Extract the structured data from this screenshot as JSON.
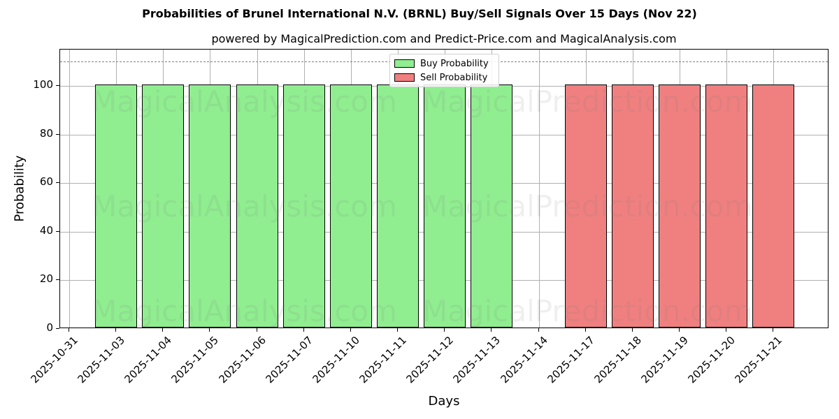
{
  "title": "Probabilities of Brunel International N.V. (BRNL) Buy/Sell Signals Over 15 Days (Nov 22)",
  "subtitle": "powered by MagicalPrediction.com and Predict-Price.com and MagicalAnalysis.com",
  "watermarks": [
    "MagicalAnalysis.com",
    "MagicalPrediction.com"
  ],
  "legend": {
    "buy_label": "Buy Probability",
    "sell_label": "Sell Probability"
  },
  "colors": {
    "buy": "#90ee90",
    "sell": "#f08080"
  },
  "chart_data": {
    "type": "bar",
    "title": "Probabilities of Brunel International N.V. (BRNL) Buy/Sell Signals Over 15 Days (Nov 22)",
    "subtitle": "powered by MagicalPrediction.com and Predict-Price.com and MagicalAnalysis.com",
    "xlabel": "Days",
    "ylabel": "Probability",
    "ylim": [
      0,
      115
    ],
    "yticks": [
      0,
      20,
      40,
      60,
      80,
      100
    ],
    "reference_line": 110,
    "grid": true,
    "legend_position": "upper center",
    "categories": [
      "2025-10-31",
      "2025-11-03",
      "2025-11-04",
      "2025-11-05",
      "2025-11-06",
      "2025-11-07",
      "2025-11-10",
      "2025-11-11",
      "2025-11-12",
      "2025-11-13",
      "2025-11-14",
      "2025-11-17",
      "2025-11-18",
      "2025-11-19",
      "2025-11-20",
      "2025-11-21"
    ],
    "series": [
      {
        "name": "Buy Probability",
        "color": "#90ee90",
        "values": [
          0,
          100,
          100,
          100,
          100,
          100,
          100,
          100,
          100,
          100,
          0,
          0,
          0,
          0,
          0,
          0
        ]
      },
      {
        "name": "Sell Probability",
        "color": "#f08080",
        "values": [
          0,
          0,
          0,
          0,
          0,
          0,
          0,
          0,
          0,
          0,
          0,
          100,
          100,
          100,
          100,
          100
        ]
      }
    ]
  }
}
